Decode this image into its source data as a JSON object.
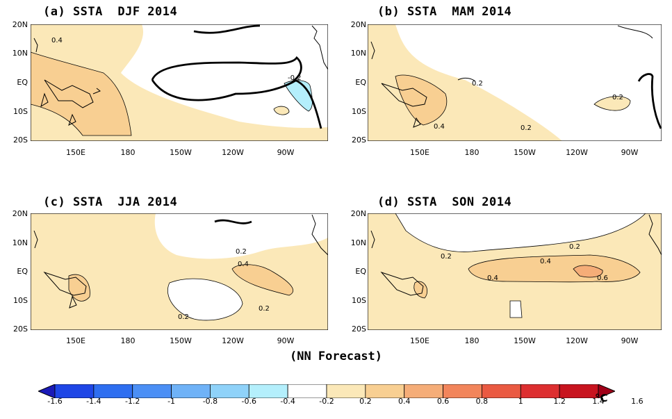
{
  "panels": [
    {
      "id": "a",
      "title": "(a) SSTA  DJF 2014",
      "contour_labels": [
        "0.4",
        "-0.2"
      ]
    },
    {
      "id": "b",
      "title": "(b) SSTA  MAM 2014",
      "contour_labels": [
        "0.2",
        "0.2",
        "0.4",
        "0.2"
      ]
    },
    {
      "id": "c",
      "title": "(c) SSTA  JJA 2014",
      "contour_labels": [
        "0.2",
        "0.4",
        "0.2",
        "0.2"
      ]
    },
    {
      "id": "d",
      "title": "(d) SSTA  SON 2014",
      "contour_labels": [
        "0.2",
        "0.2",
        "0.4",
        "0.4",
        "0.6"
      ]
    }
  ],
  "lat_labels": [
    "20N",
    "10N",
    "EQ",
    "10S",
    "20S"
  ],
  "lon_labels": [
    "150E",
    "180",
    "150W",
    "120W",
    "90W"
  ],
  "caption": "(NN Forecast)",
  "colorbar": {
    "tick_labels": [
      "-1.6",
      "-1.4",
      "-1.2",
      "-1",
      "-0.8",
      "-0.6",
      "-0.4",
      "-0.2",
      "0.2",
      "0.4",
      "0.6",
      "0.8",
      "1",
      "1.2",
      "1.4",
      "1.6"
    ],
    "unit": "°C",
    "colors": [
      "#1a1ab8",
      "#1e46e6",
      "#2e6ef0",
      "#4b8ff5",
      "#6fb2f7",
      "#8fd2f9",
      "#b4effc",
      "#ffffff",
      "#fbe8b8",
      "#f8cf92",
      "#f5ad78",
      "#f2855b",
      "#ea5a42",
      "#dd2f30",
      "#c8141f",
      "#a00018"
    ]
  },
  "colors": {
    "warm_0_2": "#fbe8b8",
    "warm_0_4": "#f8cf92",
    "warm_0_6": "#f5ad78",
    "cool_neg_0_2": "#b4effc"
  }
}
